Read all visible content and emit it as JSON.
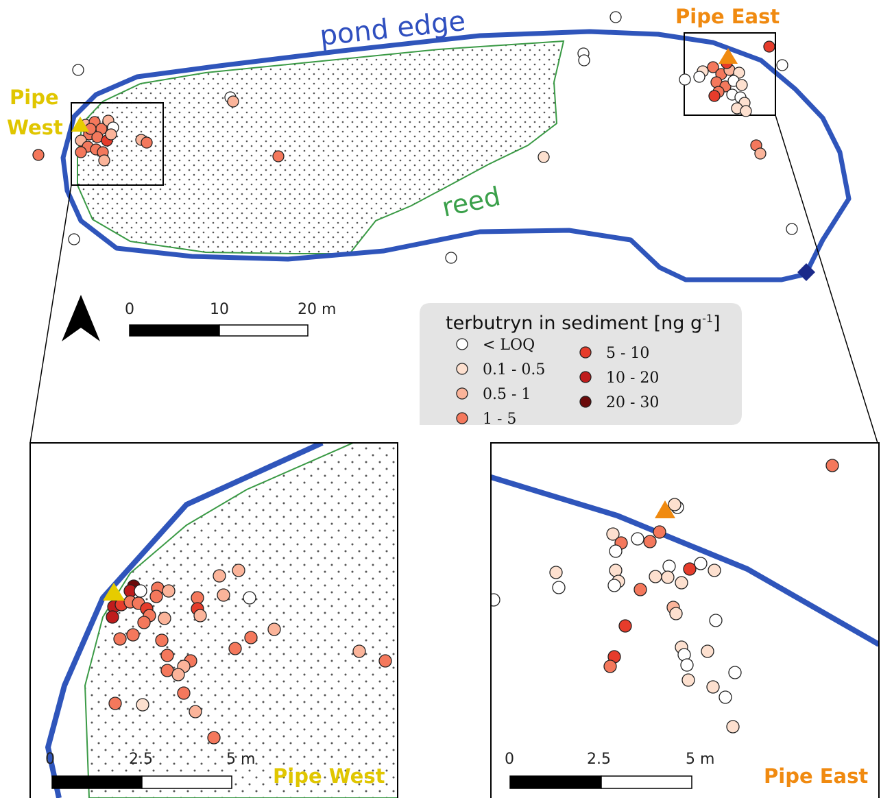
{
  "labels": {
    "pond_edge": "pond edge",
    "reed": "reed",
    "pipe_west_top": "Pipe",
    "pipe_west_bottom": "West",
    "pipe_east": "Pipe East",
    "inset_left_title": "Pipe West",
    "inset_right_title": "Pipe East"
  },
  "scale_main": {
    "ticks": [
      "0",
      "10",
      "20 m"
    ]
  },
  "scale_inset_left": {
    "ticks": [
      "0",
      "2.5",
      "5 m"
    ]
  },
  "scale_inset_right": {
    "ticks": [
      "0",
      "2.5",
      "5 m"
    ]
  },
  "legend": {
    "title": "terbutryn in sediment [ng g",
    "title_sup": "-1",
    "title_end": "]",
    "classes": [
      {
        "label": "< LOQ",
        "color": "#ffffff"
      },
      {
        "label": "0.1 - 0.5",
        "color": "#fde0cf"
      },
      {
        "label": "0.5 - 1",
        "color": "#fbb49a"
      },
      {
        "label": "1 - 5",
        "color": "#f4785c"
      },
      {
        "label": "5 - 10",
        "color": "#e63c2b"
      },
      {
        "label": "10 - 20",
        "color": "#bf1c1c"
      },
      {
        "label": "20 - 30",
        "color": "#6b0a0a"
      }
    ]
  },
  "colors": {
    "pond_edge": "#2f55bb",
    "reed_outline": "#3a9a45",
    "pipe_west": "#e6cc00",
    "pipe_east": "#f08a10",
    "outlet": "#1b2a8a",
    "legend_bg": "#e4e4e4"
  },
  "icons": {
    "north_arrow": "north-arrow-icon",
    "outlet": "outlet-diamond-icon"
  }
}
